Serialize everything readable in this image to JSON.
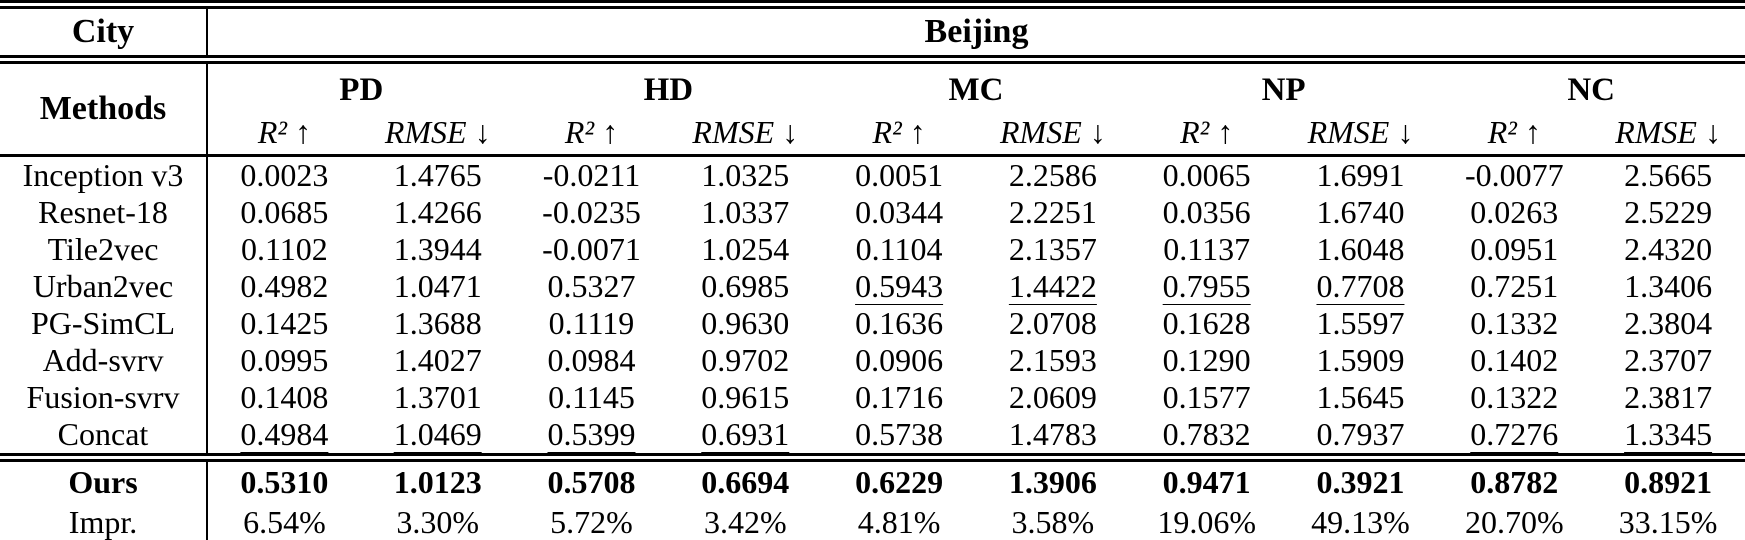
{
  "table": {
    "city_label": "City",
    "city_value": "Beijing",
    "methods_label": "Methods",
    "groups": [
      "PD",
      "HD",
      "MC",
      "NP",
      "NC"
    ],
    "metric_headers": {
      "r2": "R² ↑",
      "rmse": "RMSE ↓"
    },
    "rows": [
      {
        "method": "Inception v3",
        "values": [
          "0.0023",
          "1.4765",
          "-0.0211",
          "1.0325",
          "0.0051",
          "2.2586",
          "0.0065",
          "1.6991",
          "-0.0077",
          "2.5665"
        ],
        "underline": []
      },
      {
        "method": "Resnet-18",
        "values": [
          "0.0685",
          "1.4266",
          "-0.0235",
          "1.0337",
          "0.0344",
          "2.2251",
          "0.0356",
          "1.6740",
          "0.0263",
          "2.5229"
        ],
        "underline": []
      },
      {
        "method": "Tile2vec",
        "values": [
          "0.1102",
          "1.3944",
          "-0.0071",
          "1.0254",
          "0.1104",
          "2.1357",
          "0.1137",
          "1.6048",
          "0.0951",
          "2.4320"
        ],
        "underline": []
      },
      {
        "method": "Urban2vec",
        "values": [
          "0.4982",
          "1.0471",
          "0.5327",
          "0.6985",
          "0.5943",
          "1.4422",
          "0.7955",
          "0.7708",
          "0.7251",
          "1.3406"
        ],
        "underline": [
          4,
          5,
          6,
          7
        ]
      },
      {
        "method": "PG-SimCL",
        "values": [
          "0.1425",
          "1.3688",
          "0.1119",
          "0.9630",
          "0.1636",
          "2.0708",
          "0.1628",
          "1.5597",
          "0.1332",
          "2.3804"
        ],
        "underline": []
      },
      {
        "method": "Add-svrv",
        "values": [
          "0.0995",
          "1.4027",
          "0.0984",
          "0.9702",
          "0.0906",
          "2.1593",
          "0.1290",
          "1.5909",
          "0.1402",
          "2.3707"
        ],
        "underline": []
      },
      {
        "method": "Fusion-svrv",
        "values": [
          "0.1408",
          "1.3701",
          "0.1145",
          "0.9615",
          "0.1716",
          "2.0609",
          "0.1577",
          "1.5645",
          "0.1322",
          "2.3817"
        ],
        "underline": []
      },
      {
        "method": "Concat",
        "values": [
          "0.4984",
          "1.0469",
          "0.5399",
          "0.6931",
          "0.5738",
          "1.4783",
          "0.7832",
          "0.7937",
          "0.7276",
          "1.3345"
        ],
        "underline": [
          0,
          1,
          2,
          3,
          8,
          9
        ]
      }
    ],
    "summary_rows": [
      {
        "method": "Ours",
        "bold": true,
        "values": [
          "0.5310",
          "1.0123",
          "0.5708",
          "0.6694",
          "0.6229",
          "1.3906",
          "0.9471",
          "0.3921",
          "0.8782",
          "0.8921"
        ]
      },
      {
        "method": "Impr.",
        "bold": false,
        "values": [
          "6.54%",
          "3.30%",
          "5.72%",
          "3.42%",
          "4.81%",
          "3.58%",
          "19.06%",
          "49.13%",
          "20.70%",
          "33.15%"
        ]
      }
    ],
    "colors": {
      "text": "#000000",
      "background": "#ffffff",
      "rule": "#000000"
    }
  }
}
